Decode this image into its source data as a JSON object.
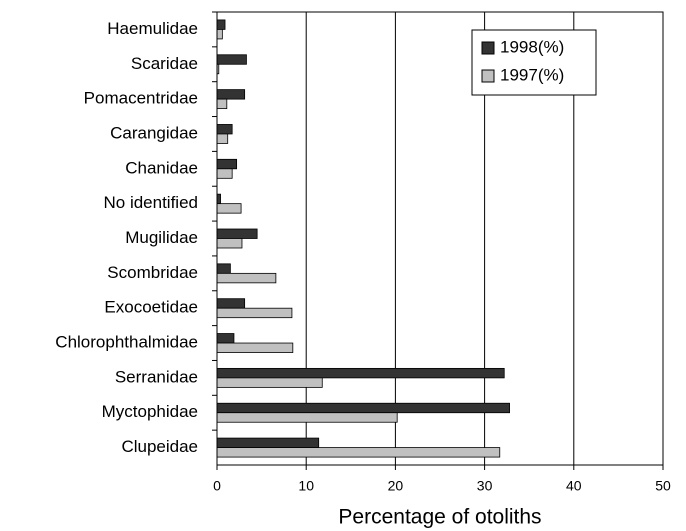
{
  "chart_data": {
    "type": "barh",
    "xlabel": "Percentage of otoliths",
    "categories": [
      "Haemulidae",
      "Scaridae",
      "Pomacentridae",
      "Carangidae",
      "Chanidae",
      "No identified",
      "Mugilidae",
      "Scombridae",
      "Exocoetidae",
      "Chlorophthalmidae",
      "Serranidae",
      "Myctophidae",
      "Clupeidae"
    ],
    "series": [
      {
        "name": "1998(%)",
        "color": "#333333",
        "values": [
          0.9,
          3.3,
          3.1,
          1.7,
          2.2,
          0.4,
          4.5,
          1.5,
          3.1,
          1.9,
          32.2,
          32.8,
          11.4
        ]
      },
      {
        "name": "1997(%)",
        "color": "#c0c0c0",
        "values": [
          0.6,
          0.2,
          1.1,
          1.2,
          1.7,
          2.7,
          2.8,
          6.6,
          8.4,
          8.5,
          11.8,
          20.2,
          31.7
        ]
      }
    ],
    "xlim": [
      0,
      50
    ],
    "xticks": [
      0,
      10,
      20,
      30,
      40,
      50
    ],
    "grid": true,
    "legend": "upper right"
  }
}
